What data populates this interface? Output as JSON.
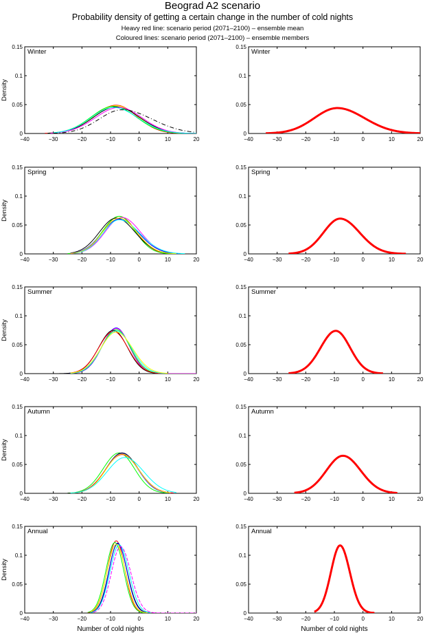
{
  "header": {
    "title": "Beograd A2 scenario",
    "subtitle": "Probability density of getting a certain change in the number of cold nights",
    "note1": "Heavy red line: scenario period (2071–2100) – ensemble mean",
    "note2": "Coloured lines: scenario period (2071–2100) – ensemble members"
  },
  "chart_data": {
    "type": "line",
    "title": "Beograd A2 scenario",
    "xlabel": "Number of cold nights",
    "ylabel": "Density",
    "xlim": [
      -40,
      20
    ],
    "ylim": [
      0,
      0.15
    ],
    "xticks": [
      -40,
      -30,
      -20,
      -10,
      0,
      10,
      20
    ],
    "yticks": [
      0,
      0.05,
      0.1,
      0.15
    ],
    "ytick_labels": [
      "0",
      "0.05",
      "0.1",
      "0.15"
    ],
    "grid": false,
    "mean_color": "#ff0000",
    "member_colors": [
      "#ff0000",
      "#00ff00",
      "#0000ff",
      "#00ffff",
      "#ff00ff",
      "#ffff00",
      "#000000"
    ],
    "panels": [
      {
        "label": "Winter",
        "ensemble_mean": {
          "mode": -9,
          "peak": 0.044,
          "range": [
            -34,
            20
          ],
          "sd_left": 8.0,
          "sd_right": 9.5
        },
        "members": [
          {
            "color": "#ff0000",
            "mode": -8,
            "peak": 0.049,
            "range": [
              -33,
              20
            ],
            "sd_left": 8.0,
            "sd_right": 7.2
          },
          {
            "color": "#ffff00",
            "mode": -8,
            "peak": 0.048,
            "range": [
              -32,
              20
            ],
            "sd_left": 8.0,
            "sd_right": 7.6
          },
          {
            "color": "#00ff00",
            "mode": -9,
            "peak": 0.047,
            "range": [
              -31,
              20
            ],
            "sd_left": 7.8,
            "sd_right": 8.0
          },
          {
            "color": "#000000",
            "mode": -8,
            "peak": 0.046,
            "range": [
              -32,
              20
            ],
            "sd_left": 8.0,
            "sd_right": 8.2
          },
          {
            "color": "#ff00ff",
            "mode": -7,
            "peak": 0.045,
            "range": [
              -31,
              20
            ],
            "sd_left": 8.3,
            "sd_right": 8.0
          },
          {
            "color": "#00ffff",
            "mode": -9,
            "peak": 0.045,
            "range": [
              -30,
              20
            ],
            "sd_left": 7.8,
            "sd_right": 8.5
          },
          {
            "color": "#000000",
            "mode": -6,
            "peak": 0.041,
            "range": [
              -30,
              20
            ],
            "sd_left": 8.0,
            "sd_right": 10.5,
            "dash": "6,3,1,3"
          }
        ]
      },
      {
        "label": "Spring",
        "ensemble_mean": {
          "mode": -8,
          "peak": 0.061,
          "range": [
            -26,
            15
          ],
          "sd_left": 5.8,
          "sd_right": 6.8
        },
        "members": [
          {
            "color": "#ff0000",
            "mode": -7,
            "peak": 0.065,
            "range": [
              -25,
              12
            ],
            "sd_left": 5.6,
            "sd_right": 5.9
          },
          {
            "color": "#00ff00",
            "mode": -7,
            "peak": 0.065,
            "range": [
              -25,
              12
            ],
            "sd_left": 5.8,
            "sd_right": 5.6
          },
          {
            "color": "#ff00ff",
            "mode": -6,
            "peak": 0.063,
            "range": [
              -24,
              14
            ],
            "sd_left": 5.9,
            "sd_right": 6.4
          },
          {
            "color": "#000000",
            "mode": -8,
            "peak": 0.062,
            "range": [
              -24,
              14
            ],
            "sd_left": 5.9,
            "sd_right": 6.6
          },
          {
            "color": "#0000ff",
            "mode": -7,
            "peak": 0.06,
            "range": [
              -24,
              14
            ],
            "sd_left": 6.0,
            "sd_right": 6.8
          },
          {
            "color": "#00ffff",
            "mode": -7,
            "peak": 0.059,
            "range": [
              -23,
              16
            ],
            "sd_left": 5.6,
            "sd_right": 7.2
          },
          {
            "color": "#ffff00",
            "mode": -7,
            "peak": 0.062,
            "range": [
              -24,
              13
            ],
            "sd_left": 5.8,
            "sd_right": 6.2
          }
        ]
      },
      {
        "label": "Summer",
        "ensemble_mean": {
          "mode": -9.5,
          "peak": 0.074,
          "range": [
            -26,
            7
          ],
          "sd_left": 5.3,
          "sd_right": 5.0
        },
        "members": [
          {
            "color": "#0000ff",
            "mode": -8,
            "peak": 0.079,
            "range": [
              -40,
              20
            ],
            "sd_left": 4.9,
            "sd_right": 4.6
          },
          {
            "color": "#ff00ff",
            "mode": -8,
            "peak": 0.078,
            "range": [
              -24,
              20
            ],
            "sd_left": 5.0,
            "sd_right": 4.7
          },
          {
            "color": "#00ff00",
            "mode": -8,
            "peak": 0.076,
            "range": [
              -24,
              9
            ],
            "sd_left": 5.1,
            "sd_right": 4.9
          },
          {
            "color": "#000000",
            "mode": -9,
            "peak": 0.075,
            "range": [
              -40,
              9
            ],
            "sd_left": 5.1,
            "sd_right": 4.9
          },
          {
            "color": "#ff0000",
            "mode": -9,
            "peak": 0.073,
            "range": [
              -24,
              10
            ],
            "sd_left": 5.2,
            "sd_right": 5.1
          },
          {
            "color": "#00ffff",
            "mode": -8,
            "peak": 0.074,
            "range": [
              -24,
              10
            ],
            "sd_left": 5.2,
            "sd_right": 5.3
          },
          {
            "color": "#ffff00",
            "mode": -8,
            "peak": 0.072,
            "range": [
              -24,
              10
            ],
            "sd_left": 5.4,
            "sd_right": 5.7
          }
        ]
      },
      {
        "label": "Autumn",
        "ensemble_mean": {
          "mode": -7,
          "peak": 0.065,
          "range": [
            -24,
            12
          ],
          "sd_left": 5.8,
          "sd_right": 6.2
        },
        "members": [
          {
            "color": "#00ff00",
            "mode": -7,
            "peak": 0.07,
            "range": [
              -25,
              10
            ],
            "sd_left": 5.6,
            "sd_right": 5.4
          },
          {
            "color": "#000000",
            "mode": -6,
            "peak": 0.07,
            "range": [
              -25,
              11
            ],
            "sd_left": 5.6,
            "sd_right": 5.7
          },
          {
            "color": "#0000ff",
            "mode": -6,
            "peak": 0.069,
            "range": [
              -24,
              11
            ],
            "sd_left": 5.6,
            "sd_right": 5.6
          },
          {
            "color": "#ff00ff",
            "mode": -6,
            "peak": 0.068,
            "range": [
              -24,
              12
            ],
            "sd_left": 5.7,
            "sd_right": 5.8
          },
          {
            "color": "#ff0000",
            "mode": -6,
            "peak": 0.067,
            "range": [
              -24,
              12
            ],
            "sd_left": 5.8,
            "sd_right": 5.9
          },
          {
            "color": "#ffff00",
            "mode": -6,
            "peak": 0.068,
            "range": [
              -24,
              11
            ],
            "sd_left": 5.6,
            "sd_right": 5.8
          },
          {
            "color": "#00ffff",
            "mode": -5,
            "peak": 0.062,
            "range": [
              -24,
              13
            ],
            "sd_left": 6.2,
            "sd_right": 6.6
          }
        ]
      },
      {
        "label": "Annual",
        "ensemble_mean": {
          "mode": -8,
          "peak": 0.117,
          "range": [
            -17,
            4
          ],
          "sd_left": 3.2,
          "sd_right": 3.4
        },
        "members": [
          {
            "color": "#ff0000",
            "mode": -8,
            "peak": 0.125,
            "range": [
              -18,
              2
            ],
            "sd_left": 3.1,
            "sd_right": 3.0
          },
          {
            "color": "#00ff00",
            "mode": -8.5,
            "peak": 0.122,
            "range": [
              -18,
              2
            ],
            "sd_left": 3.1,
            "sd_right": 3.1
          },
          {
            "color": "#000000",
            "mode": -7.5,
            "peak": 0.12,
            "range": [
              -17,
              3
            ],
            "sd_left": 3.1,
            "sd_right": 3.3
          },
          {
            "color": "#0000ff",
            "mode": -7.5,
            "peak": 0.121,
            "range": [
              -17,
              3
            ],
            "sd_left": 3.0,
            "sd_right": 3.2
          },
          {
            "color": "#ffff00",
            "mode": -8,
            "peak": 0.119,
            "range": [
              -17,
              3
            ],
            "sd_left": 3.2,
            "sd_right": 3.2
          },
          {
            "color": "#00ffff",
            "mode": -7,
            "peak": 0.118,
            "range": [
              -17,
              4
            ],
            "sd_left": 3.2,
            "sd_right": 3.4
          },
          {
            "color": "#ff00ff",
            "mode": -6.5,
            "peak": 0.115,
            "range": [
              -16,
              20
            ],
            "sd_left": 3.2,
            "sd_right": 3.6,
            "dash": "5,2"
          }
        ]
      }
    ]
  }
}
